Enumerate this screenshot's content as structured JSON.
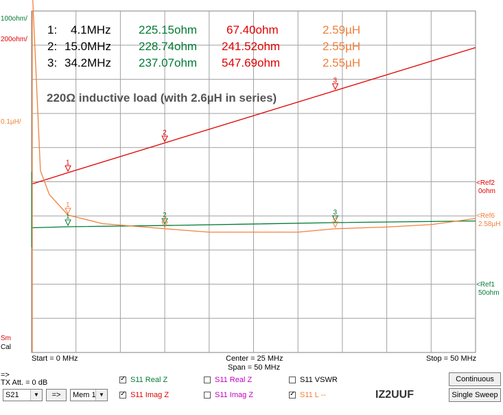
{
  "chart_data": {
    "type": "line",
    "title": "220Ω inductive load (with 2.6µH in series)",
    "x_unit": "MHz",
    "xlim": [
      0,
      50
    ],
    "grid": true,
    "left_axis_labels": {
      "ohm_100": "100ohm/",
      "ohm_200": "200ohm/",
      "uh_0_1": "0.1µH/",
      "sm": "Sm",
      "cal": "Cal"
    },
    "x_axis": {
      "start": "Start = 0 MHz",
      "center": "Center = 25 MHz",
      "span": "Span = 50 MHz",
      "stop": "Stop = 50 MHz"
    },
    "refs": [
      {
        "name": "<Ref2",
        "value": "0ohm",
        "color": "#e00000"
      },
      {
        "name": "<Ref6",
        "value": "2.58µH",
        "color": "#f0803a"
      },
      {
        "name": "<Ref1",
        "value": "50ohm",
        "color": "#007a33"
      }
    ],
    "series": [
      {
        "name": "S11 Real Z",
        "color": "#007a33",
        "unit": "ohm",
        "x": [
          0,
          4.1,
          15.0,
          34.2,
          50
        ],
        "y": [
          222,
          225.15,
          228.74,
          237.07,
          242
        ]
      },
      {
        "name": "S11 Imag Z",
        "color": "#e00000",
        "unit": "ohm",
        "x": [
          0,
          4.1,
          15.0,
          34.2,
          50
        ],
        "y": [
          0,
          67.4,
          241.52,
          547.69,
          800
        ]
      },
      {
        "name": "S11 L",
        "color": "#f0803a",
        "unit": "µH",
        "x": [
          0,
          1,
          2,
          4.1,
          8,
          15.0,
          20,
          25,
          30,
          34.2,
          40,
          45,
          50
        ],
        "y": [
          3.3,
          2.72,
          2.65,
          2.59,
          2.565,
          2.55,
          2.54,
          2.54,
          2.54,
          2.55,
          2.555,
          2.562,
          2.58
        ]
      }
    ],
    "markers": [
      {
        "num": "1:",
        "freq": "4.1MHz",
        "real": "225.15ohm",
        "imag": "67.40ohm",
        "ind": "2.59µH",
        "f": 4.1
      },
      {
        "num": "2:",
        "freq": "15.0MHz",
        "real": "228.74ohm",
        "imag": "241.52ohm",
        "ind": "2.55µH",
        "f": 15.0
      },
      {
        "num": "3:",
        "freq": "34.2MHz",
        "real": "237.07ohm",
        "imag": "547.69ohm",
        "ind": "2.55µH",
        "f": 34.2
      }
    ]
  },
  "controls": {
    "tx_arrow": "=>",
    "tx_att": "TX Att. = 0 dB",
    "port_select": "S21",
    "apply_button": "=>",
    "mem_select": "Mem 1",
    "checkboxes": [
      {
        "label": "S11  Real Z",
        "checked": true,
        "color": "#007a33"
      },
      {
        "label": "S11  Imag Z",
        "checked": true,
        "color": "#e00000"
      },
      {
        "label": "S11  Real Z",
        "checked": false,
        "color": "#c000c0"
      },
      {
        "label": "S11  Imag Z",
        "checked": false,
        "color": "#c000c0"
      },
      {
        "label": "S11  VSWR",
        "checked": false,
        "color": "#000000"
      },
      {
        "label": "S11  L --",
        "checked": true,
        "color": "#f0803a"
      }
    ],
    "callsign": "IZ2UUF",
    "continuous_button": "Continuous",
    "single_sweep_button": "Single Sweep"
  }
}
